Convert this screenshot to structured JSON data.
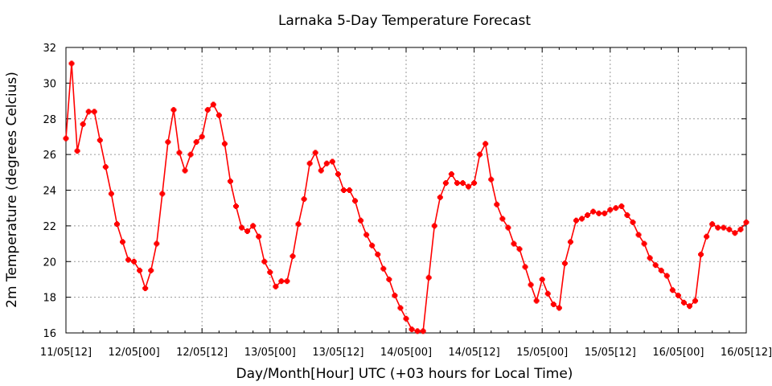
{
  "chart_data": {
    "type": "line",
    "title": "Larnaka 5-Day Temperature Forecast",
    "xlabel": "Day/Month[Hour] UTC (+03 hours for Local Time)",
    "ylabel": "2m Temperature (degrees Celcius)",
    "ylim": [
      16,
      32
    ],
    "yticks": [
      16,
      18,
      20,
      22,
      24,
      26,
      28,
      30,
      32
    ],
    "xlim": [
      0,
      120
    ],
    "xticks": [
      {
        "x": 0,
        "label": "11/05[12]"
      },
      {
        "x": 12,
        "label": "12/05[00]"
      },
      {
        "x": 24,
        "label": "12/05[12]"
      },
      {
        "x": 36,
        "label": "13/05[00]"
      },
      {
        "x": 48,
        "label": "13/05[12]"
      },
      {
        "x": 60,
        "label": "14/05[00]"
      },
      {
        "x": 72,
        "label": "14/05[12]"
      },
      {
        "x": 84,
        "label": "15/05[00]"
      },
      {
        "x": 96,
        "label": "15/05[12]"
      },
      {
        "x": 108,
        "label": "16/05[00]"
      },
      {
        "x": 120,
        "label": "16/05[12]"
      }
    ],
    "grid": true,
    "series": [
      {
        "color": "#ff0000",
        "marker": "plus-filled",
        "values": [
          26.9,
          31.1,
          26.2,
          27.7,
          28.4,
          28.4,
          26.8,
          25.3,
          23.8,
          22.1,
          21.1,
          20.1,
          20.0,
          19.5,
          18.5,
          19.5,
          21.0,
          23.8,
          26.7,
          28.5,
          26.1,
          25.1,
          26.0,
          26.7,
          27.0,
          28.5,
          28.8,
          28.2,
          26.6,
          24.5,
          23.1,
          21.9,
          21.7,
          22.0,
          21.4,
          20.0,
          19.4,
          18.6,
          18.9,
          18.9,
          20.3,
          22.1,
          23.5,
          25.5,
          26.1,
          25.1,
          25.5,
          25.6,
          24.9,
          24.0,
          24.0,
          23.4,
          22.3,
          21.5,
          20.9,
          20.4,
          19.6,
          19.0,
          18.1,
          17.4,
          16.8,
          16.2,
          16.1,
          16.1,
          19.1,
          22.0,
          23.6,
          24.4,
          24.9,
          24.4,
          24.4,
          24.2,
          24.4,
          26.0,
          26.6,
          24.6,
          23.2,
          22.4,
          21.9,
          21.0,
          20.7,
          19.7,
          18.7,
          17.8,
          19.0,
          18.2,
          17.6,
          17.4,
          19.9,
          21.1,
          22.3,
          22.4,
          22.6,
          22.8,
          22.7,
          22.7,
          22.9,
          23.0,
          23.1,
          22.6,
          22.2,
          21.5,
          21.0,
          20.2,
          19.8,
          19.5,
          19.2,
          18.4,
          18.1,
          17.7,
          17.5,
          17.8,
          20.4,
          21.4,
          22.1,
          21.9,
          21.9,
          21.8,
          21.6,
          21.8,
          22.2
        ]
      }
    ]
  }
}
